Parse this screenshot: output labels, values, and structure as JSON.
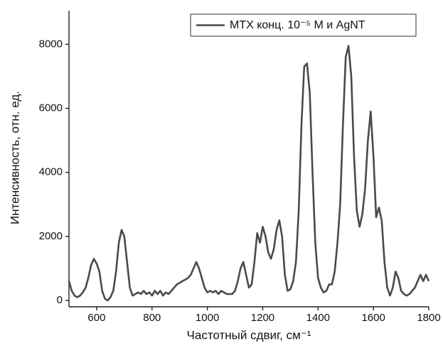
{
  "chart_data": {
    "type": "line",
    "x_label": "Частотный сдвиг, см⁻¹",
    "y_label": "Интенсивность, отн. ед.",
    "legend": "upper right",
    "xlim": [
      500,
      1800
    ],
    "xticks": [
      600,
      800,
      1000,
      1200,
      1400,
      1600,
      1800
    ],
    "ylim": [
      -200,
      9050
    ],
    "yticks": [
      0,
      2000,
      4000,
      6000,
      8000
    ],
    "x": [
      500,
      510,
      520,
      530,
      540,
      550,
      560,
      570,
      580,
      590,
      600,
      610,
      620,
      630,
      640,
      650,
      660,
      670,
      680,
      690,
      700,
      710,
      720,
      730,
      740,
      750,
      760,
      770,
      780,
      790,
      800,
      810,
      820,
      830,
      840,
      850,
      860,
      870,
      880,
      890,
      900,
      910,
      920,
      930,
      940,
      950,
      960,
      970,
      980,
      990,
      1000,
      1010,
      1020,
      1030,
      1040,
      1050,
      1060,
      1070,
      1080,
      1090,
      1100,
      1110,
      1120,
      1130,
      1140,
      1150,
      1160,
      1170,
      1180,
      1190,
      1200,
      1210,
      1220,
      1230,
      1240,
      1250,
      1260,
      1270,
      1280,
      1290,
      1300,
      1310,
      1320,
      1330,
      1340,
      1350,
      1360,
      1370,
      1380,
      1390,
      1400,
      1410,
      1420,
      1430,
      1440,
      1450,
      1460,
      1470,
      1480,
      1490,
      1500,
      1510,
      1520,
      1530,
      1540,
      1550,
      1560,
      1570,
      1580,
      1590,
      1600,
      1610,
      1620,
      1630,
      1640,
      1650,
      1660,
      1670,
      1680,
      1690,
      1700,
      1710,
      1720,
      1730,
      1740,
      1750,
      1760,
      1770,
      1780,
      1790,
      1800
    ],
    "series": [
      {
        "name": "MTX конц. 10⁻⁵ M и AgNT",
        "color": "#4a4a4a",
        "values": [
          600,
          300,
          150,
          100,
          150,
          250,
          400,
          700,
          1100,
          1300,
          1150,
          900,
          300,
          50,
          0,
          100,
          300,
          900,
          1800,
          2200,
          2000,
          1200,
          400,
          150,
          200,
          250,
          200,
          300,
          200,
          250,
          150,
          300,
          200,
          300,
          150,
          250,
          200,
          300,
          400,
          500,
          550,
          600,
          650,
          700,
          800,
          1000,
          1200,
          1000,
          700,
          400,
          250,
          300,
          250,
          300,
          200,
          300,
          250,
          200,
          200,
          200,
          300,
          600,
          1000,
          1200,
          800,
          400,
          500,
          1200,
          2100,
          1800,
          2300,
          2000,
          1500,
          1300,
          1600,
          2200,
          2500,
          2000,
          800,
          300,
          350,
          600,
          1200,
          2800,
          5500,
          7300,
          7400,
          6500,
          4000,
          1800,
          700,
          400,
          250,
          300,
          500,
          500,
          900,
          1800,
          3000,
          5500,
          7600,
          7950,
          7000,
          4500,
          2800,
          2300,
          2700,
          3500,
          5000,
          5900,
          4500,
          2600,
          2900,
          2500,
          1200,
          400,
          150,
          400,
          900,
          700,
          300,
          200,
          150,
          200,
          300,
          400,
          600,
          800,
          600,
          800,
          600
        ]
      }
    ]
  }
}
